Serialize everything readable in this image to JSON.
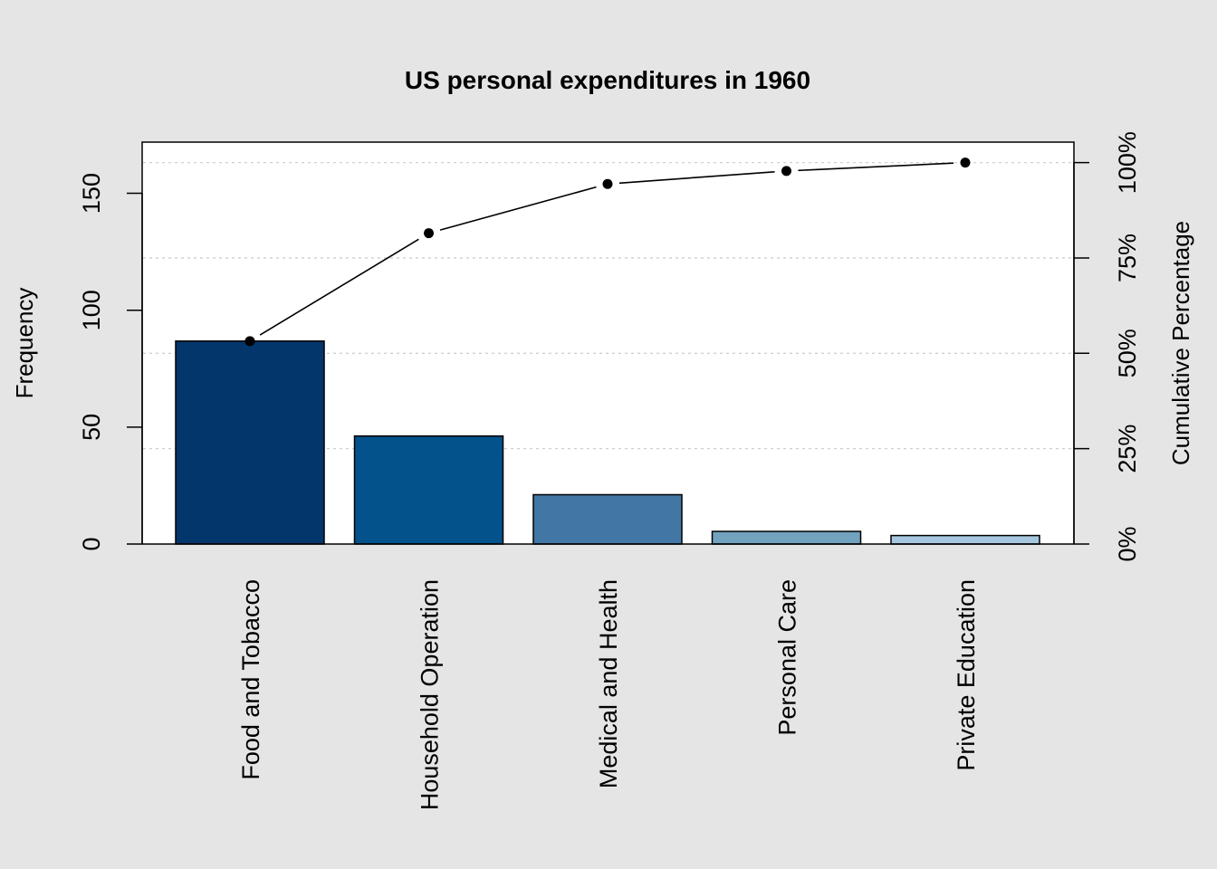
{
  "chart_data": {
    "type": "bar",
    "title": "US personal expenditures in 1960",
    "categories": [
      "Food and Tobacco",
      "Household Operation",
      "Medical and Health",
      "Personal Care",
      "Private Education"
    ],
    "values": [
      86.8,
      46.2,
      21.1,
      5.4,
      3.64
    ],
    "cumulative_percent": [
      53.2,
      81.5,
      94.4,
      97.8,
      100
    ],
    "bar_colors": [
      "#03366b",
      "#03528b",
      "#4277a5",
      "#73a2bf",
      "#a6c7df"
    ],
    "ylabel": "Frequency",
    "ylabel_right": "Cumulative Percentage",
    "ylim": [
      0,
      172
    ],
    "yticks": [
      0,
      50,
      100,
      150
    ],
    "yticks_right": [
      "0%",
      "25%",
      "50%",
      "75%",
      "100%"
    ],
    "grid": "horizontal dotted at cumulative quartiles",
    "legend": "none"
  }
}
